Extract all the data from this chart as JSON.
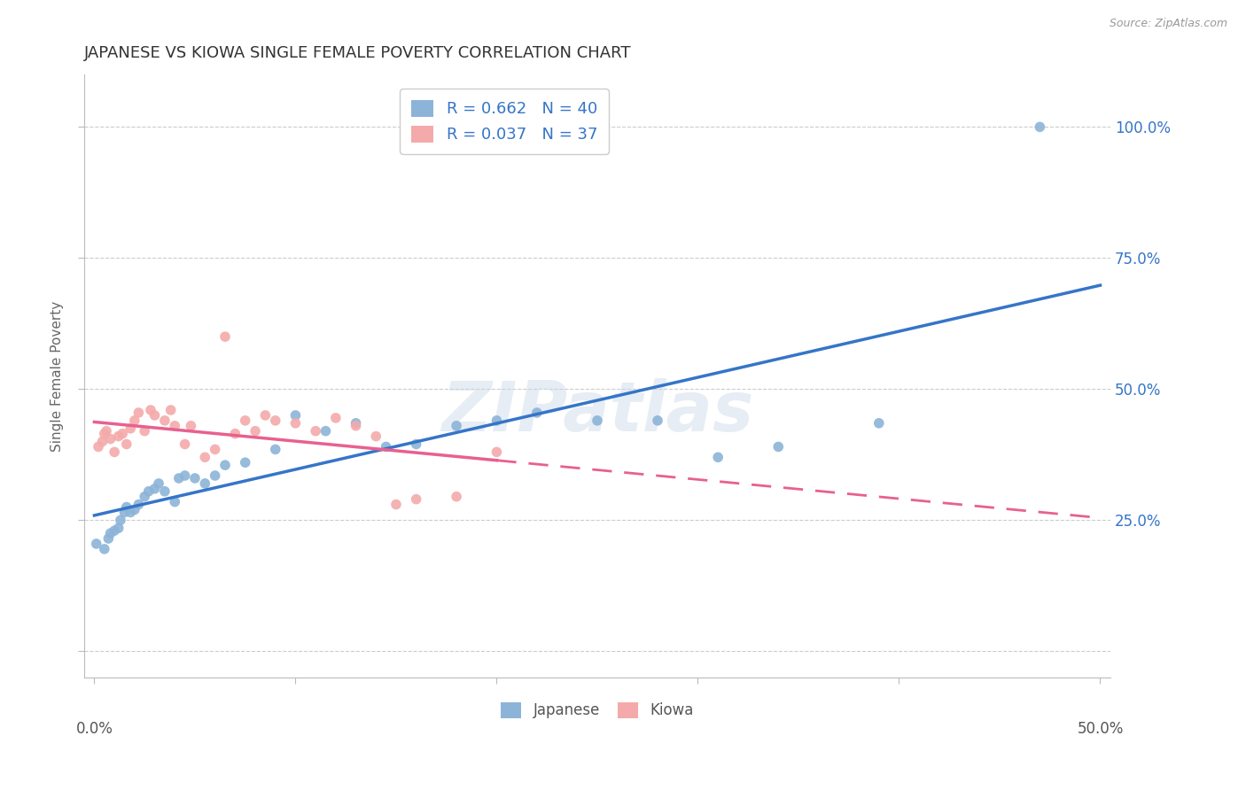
{
  "title": "JAPANESE VS KIOWA SINGLE FEMALE POVERTY CORRELATION CHART",
  "source": "Source: ZipAtlas.com",
  "ylabel": "Single Female Poverty",
  "watermark": "ZIPatlas",
  "japanese_R": 0.662,
  "japanese_N": 40,
  "kiowa_R": 0.037,
  "kiowa_N": 37,
  "japanese_color": "#8CB4D8",
  "kiowa_color": "#F4AAAA",
  "japanese_line_color": "#3575C8",
  "kiowa_line_color": "#E86090",
  "japanese_x": [
    0.001,
    0.005,
    0.007,
    0.008,
    0.01,
    0.012,
    0.013,
    0.015,
    0.016,
    0.018,
    0.02,
    0.022,
    0.025,
    0.027,
    0.03,
    0.032,
    0.035,
    0.04,
    0.042,
    0.045,
    0.05,
    0.055,
    0.06,
    0.065,
    0.075,
    0.09,
    0.1,
    0.115,
    0.13,
    0.145,
    0.16,
    0.18,
    0.2,
    0.22,
    0.25,
    0.28,
    0.31,
    0.34,
    0.39,
    0.47
  ],
  "japanese_y": [
    0.205,
    0.195,
    0.215,
    0.225,
    0.23,
    0.235,
    0.25,
    0.265,
    0.275,
    0.265,
    0.27,
    0.28,
    0.295,
    0.305,
    0.31,
    0.32,
    0.305,
    0.285,
    0.33,
    0.335,
    0.33,
    0.32,
    0.335,
    0.355,
    0.36,
    0.385,
    0.45,
    0.42,
    0.435,
    0.39,
    0.395,
    0.43,
    0.44,
    0.455,
    0.44,
    0.44,
    0.37,
    0.39,
    0.435,
    1.0
  ],
  "kiowa_x": [
    0.002,
    0.004,
    0.005,
    0.006,
    0.008,
    0.01,
    0.012,
    0.014,
    0.016,
    0.018,
    0.02,
    0.022,
    0.025,
    0.028,
    0.03,
    0.035,
    0.038,
    0.04,
    0.045,
    0.048,
    0.055,
    0.06,
    0.065,
    0.07,
    0.075,
    0.08,
    0.085,
    0.09,
    0.1,
    0.11,
    0.12,
    0.13,
    0.14,
    0.15,
    0.16,
    0.18,
    0.2
  ],
  "kiowa_y": [
    0.39,
    0.4,
    0.415,
    0.42,
    0.405,
    0.38,
    0.41,
    0.415,
    0.395,
    0.425,
    0.44,
    0.455,
    0.42,
    0.46,
    0.45,
    0.44,
    0.46,
    0.43,
    0.395,
    0.43,
    0.37,
    0.385,
    0.6,
    0.415,
    0.44,
    0.42,
    0.45,
    0.44,
    0.435,
    0.42,
    0.445,
    0.43,
    0.41,
    0.28,
    0.29,
    0.295,
    0.38
  ],
  "xlim": [
    -0.005,
    0.505
  ],
  "ylim": [
    -0.05,
    1.1
  ],
  "y_ticks": [
    0.0,
    0.25,
    0.5,
    0.75,
    1.0
  ],
  "y_tick_labels": [
    "",
    "25.0%",
    "50.0%",
    "75.0%",
    "100.0%"
  ],
  "x_tick_positions": [
    0.0,
    0.1,
    0.2,
    0.3,
    0.4,
    0.5
  ],
  "bg_color": "#FFFFFF",
  "grid_color": "#CCCCCC",
  "title_color": "#333333",
  "axis_label_color": "#666666",
  "right_tick_color": "#3575C8",
  "legend_text_color": "#3575C8"
}
